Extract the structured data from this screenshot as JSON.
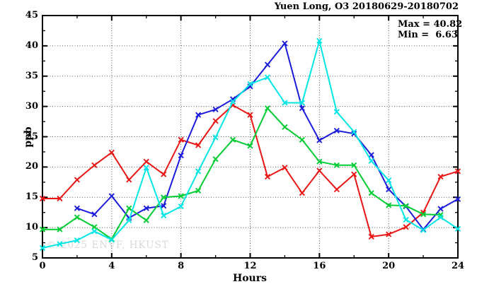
{
  "watermark": "© 2025 ENVF, HKUST",
  "chart_data": {
    "type": "line",
    "title": "Yuen Long, O3 20180629-20180702",
    "xlabel": "Hours",
    "ylabel": "ppb",
    "xlim": [
      0,
      24
    ],
    "ylim": [
      5,
      45
    ],
    "x_major_ticks": [
      0,
      4,
      8,
      12,
      16,
      20,
      24
    ],
    "x_minor_tick_step": 2,
    "y_major_ticks": [
      5,
      10,
      15,
      20,
      25,
      30,
      35,
      40,
      45
    ],
    "y_minor_tick_step": 2.5,
    "grid": "dotted lines at major ticks",
    "legend": "none",
    "annotations": {
      "max_text": "Max = 40.82",
      "min_text": "Min =  6.63",
      "max": 40.82,
      "min": 6.63
    },
    "series": [
      {
        "name": "series-red",
        "color": "#ea1515",
        "marker": "x",
        "x": [
          0,
          1,
          2,
          3,
          4,
          5,
          6,
          7,
          8,
          9,
          10,
          11,
          12,
          13,
          14,
          15,
          16,
          17,
          18,
          19,
          20,
          21,
          22,
          23,
          24
        ],
        "values": [
          14.8,
          14.8,
          17.9,
          20.3,
          22.4,
          17.9,
          20.9,
          18.8,
          24.5,
          23.6,
          27.6,
          30.2,
          28.6,
          18.4,
          19.9,
          15.7,
          19.4,
          16.3,
          18.8,
          8.5,
          8.9,
          10.1,
          12.5,
          18.4,
          19.3
        ]
      },
      {
        "name": "series-blue",
        "color": "#1b1bdc",
        "marker": "x",
        "x": [
          2,
          3,
          4,
          5,
          6,
          7,
          8,
          9,
          10,
          11,
          12,
          13,
          14,
          15,
          16,
          17,
          18,
          19,
          20,
          21,
          22,
          23,
          24
        ],
        "values": [
          13.2,
          12.2,
          15.2,
          11.6,
          13.2,
          13.6,
          21.9,
          28.6,
          29.5,
          31.2,
          33.3,
          36.9,
          40.4,
          29.7,
          24.4,
          26.0,
          25.5,
          22.0,
          16.3,
          13.5,
          9.7,
          13.1,
          14.7
        ]
      },
      {
        "name": "series-green",
        "color": "#00cc33",
        "marker": "x",
        "x": [
          0,
          1,
          2,
          3,
          4,
          5,
          6,
          7,
          8,
          9,
          10,
          11,
          12,
          13,
          14,
          15,
          16,
          17,
          18,
          19,
          20,
          21,
          22,
          23
        ],
        "values": [
          9.7,
          9.7,
          11.7,
          10.1,
          8.1,
          13.2,
          11.2,
          15.0,
          15.2,
          16.1,
          21.3,
          24.5,
          23.5,
          29.7,
          26.6,
          24.5,
          20.9,
          20.3,
          20.3,
          15.7,
          13.7,
          13.6,
          12.2,
          12.1
        ]
      },
      {
        "name": "series-cyan",
        "color": "#00e6e6",
        "marker": "x",
        "x": [
          0,
          1,
          2,
          3,
          4,
          5,
          6,
          7,
          8,
          9,
          10,
          11,
          12,
          13,
          14,
          15,
          16,
          17,
          18,
          19,
          20,
          21,
          22,
          23,
          24
        ],
        "values": [
          6.63,
          7.3,
          7.9,
          9.4,
          8.0,
          11.2,
          19.9,
          12.0,
          13.5,
          19.3,
          24.9,
          30.8,
          33.7,
          34.8,
          30.6,
          30.6,
          40.82,
          29.1,
          25.8,
          21.0,
          17.8,
          11.3,
          9.6,
          11.7,
          9.8
        ]
      }
    ]
  }
}
